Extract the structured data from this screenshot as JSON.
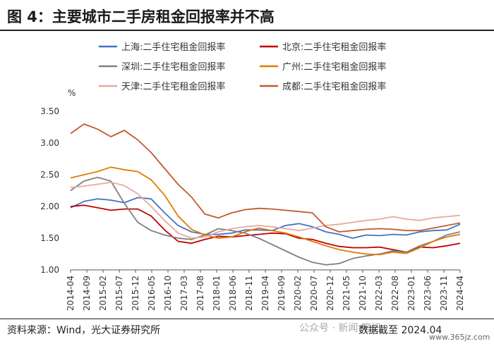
{
  "header": {
    "title": "图 4：主要城市二手房租金回报率并不高"
  },
  "footer": {
    "source": "资料来源：Wind，光大证券研究所",
    "cutoff": "数据截至 2024.04",
    "watermark": "公众号 · 新闻 笔记",
    "watermark_url": "www.365jz.com"
  },
  "chart_data": {
    "type": "line",
    "ylabel": "%",
    "ylim": [
      1.0,
      3.5
    ],
    "yticks": [
      "1.00",
      "1.50",
      "2.00",
      "2.50",
      "3.00",
      "3.50"
    ],
    "xticks": [
      "2014-04",
      "2014-09",
      "2015-02",
      "2015-07",
      "2015-12",
      "2016-05",
      "2016-10",
      "2017-03",
      "2017-08",
      "2018-01",
      "2018-06",
      "2018-11",
      "2019-04",
      "2019-09",
      "2020-02",
      "2020-07",
      "2020-12",
      "2021-05",
      "2021-10",
      "2022-03",
      "2022-08",
      "2023-01",
      "2023-06",
      "2023-11",
      "2024-04"
    ],
    "grid": false,
    "legend": "top",
    "series": [
      {
        "name": "上海:二手住宅租金回报率",
        "color": "#4472C4",
        "values": [
          1.98,
          2.08,
          2.12,
          2.1,
          2.06,
          2.14,
          2.12,
          1.9,
          1.7,
          1.6,
          1.56,
          1.56,
          1.58,
          1.63,
          1.63,
          1.62,
          1.7,
          1.73,
          1.68,
          1.6,
          1.56,
          1.5,
          1.55,
          1.54,
          1.56,
          1.55,
          1.6,
          1.62,
          1.63,
          1.72
        ]
      },
      {
        "name": "北京:二手住宅租金回报率",
        "color": "#C00000",
        "values": [
          2.0,
          2.02,
          1.98,
          1.94,
          1.96,
          1.96,
          1.85,
          1.63,
          1.45,
          1.42,
          1.48,
          1.53,
          1.52,
          1.54,
          1.56,
          1.58,
          1.57,
          1.5,
          1.48,
          1.42,
          1.37,
          1.35,
          1.35,
          1.36,
          1.32,
          1.28,
          1.36,
          1.35,
          1.38,
          1.42
        ]
      },
      {
        "name": "深圳:二手住宅租金回报率",
        "color": "#808080",
        "values": [
          2.25,
          2.4,
          2.46,
          2.4,
          2.05,
          1.75,
          1.62,
          1.55,
          1.5,
          1.48,
          1.55,
          1.65,
          1.62,
          1.58,
          1.5,
          1.4,
          1.3,
          1.2,
          1.12,
          1.08,
          1.1,
          1.18,
          1.22,
          1.25,
          1.3,
          1.28,
          1.38,
          1.45,
          1.55,
          1.6
        ]
      },
      {
        "name": "广州:二手住宅租金回报率",
        "color": "#E07B00",
        "values": [
          2.45,
          2.5,
          2.55,
          2.62,
          2.58,
          2.55,
          2.42,
          2.18,
          1.85,
          1.64,
          1.55,
          1.5,
          1.52,
          1.6,
          1.66,
          1.62,
          1.58,
          1.52,
          1.45,
          1.38,
          1.32,
          1.28,
          1.25,
          1.24,
          1.28,
          1.26,
          1.35,
          1.45,
          1.52,
          1.56
        ]
      },
      {
        "name": "天津:二手住宅租金回报率",
        "color": "#E8A9A0",
        "values": [
          2.3,
          2.32,
          2.35,
          2.38,
          2.33,
          2.2,
          2.0,
          1.78,
          1.58,
          1.5,
          1.52,
          1.6,
          1.65,
          1.68,
          1.7,
          1.68,
          1.65,
          1.62,
          1.66,
          1.7,
          1.72,
          1.75,
          1.78,
          1.8,
          1.84,
          1.8,
          1.78,
          1.82,
          1.84,
          1.86
        ]
      },
      {
        "name": "成都:二手住宅租金回报率",
        "color": "#C45A2A",
        "values": [
          3.15,
          3.3,
          3.22,
          3.1,
          3.2,
          3.05,
          2.85,
          2.6,
          2.35,
          2.15,
          1.88,
          1.82,
          1.9,
          1.95,
          1.97,
          1.96,
          1.94,
          1.92,
          1.9,
          1.68,
          1.6,
          1.62,
          1.64,
          1.65,
          1.64,
          1.62,
          1.62,
          1.66,
          1.7,
          1.74
        ]
      }
    ]
  }
}
